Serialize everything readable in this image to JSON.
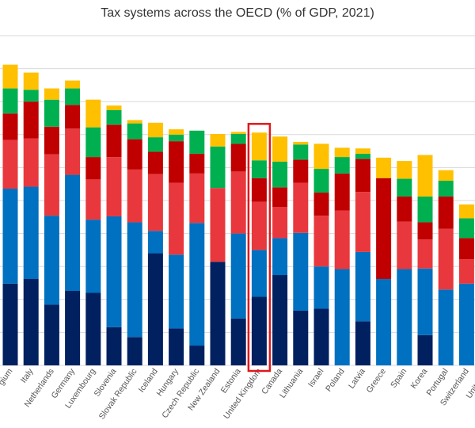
{
  "chart_data": {
    "type": "bar",
    "stacked": true,
    "title": "Tax systems across the OECD (% of GDP, 2021)",
    "xlabel": "",
    "ylabel": "",
    "ylim": [
      0,
      50
    ],
    "grid": true,
    "legend": "none",
    "categories": [
      "Belgium",
      "Italy",
      "Netherlands",
      "Germany",
      "Luxembourg",
      "Slovenia",
      "Slovak Republic",
      "Iceland",
      "Hungary",
      "Czech Republic",
      "New Zealand",
      "Estonia",
      "United Kingdom",
      "Canada",
      "Lithuania",
      "Israel",
      "Poland",
      "Latvia",
      "Greece",
      "Spain",
      "Korea",
      "Portugal",
      "Switzerland",
      "United States"
    ],
    "visible_category_labels": [
      "gium",
      "Italy",
      "Netherlands",
      "Germany",
      "Luxembourg",
      "Slovenia",
      "Slovak Republic",
      "Iceland",
      "Hungary",
      "Czech Republic",
      "New Zealand",
      "Estonia",
      "United Kingdom",
      "Canada",
      "Lithuania",
      "Israel",
      "Poland",
      "Latvia",
      "Greece",
      "Spain",
      "Korea",
      "Portugal",
      "Switzerland",
      "United St"
    ],
    "series": [
      {
        "color": "#002060",
        "values": [
          12.4,
          13.1,
          9.2,
          11.3,
          11.0,
          5.8,
          4.3,
          17.0,
          5.6,
          3.0,
          15.7,
          7.1,
          10.4,
          13.7,
          8.3,
          8.6,
          0,
          6.7,
          0,
          0,
          4.6,
          0,
          0,
          11.1
        ]
      },
      {
        "color": "#0070C0",
        "values": [
          14.4,
          14.0,
          13.5,
          17.6,
          11.1,
          16.8,
          17.4,
          3.4,
          11.2,
          18.6,
          0,
          12.9,
          7.1,
          5.6,
          11.8,
          6.4,
          14.6,
          10.5,
          13.1,
          14.6,
          10.1,
          11.5,
          12.4,
          5.8
        ]
      },
      {
        "color": "#E8383D",
        "values": [
          7.4,
          7.3,
          9.3,
          7.0,
          6.1,
          9.0,
          8.0,
          8.6,
          10.9,
          7.5,
          11.2,
          9.4,
          7.3,
          4.7,
          7.6,
          7.7,
          8.9,
          9.1,
          0,
          7.2,
          4.4,
          9.2,
          3.7,
          6.0
        ]
      },
      {
        "color": "#C00000",
        "values": [
          4.0,
          5.6,
          4.2,
          3.6,
          3.4,
          4.9,
          4.6,
          3.4,
          6.3,
          3.0,
          0,
          4.2,
          3.6,
          3.0,
          3.5,
          3.5,
          5.6,
          5.0,
          15.3,
          3.8,
          2.6,
          4.9,
          3.2,
          2.2
        ]
      },
      {
        "color": "#00B050",
        "values": [
          3.8,
          1.8,
          4.1,
          2.5,
          4.5,
          2.2,
          2.4,
          2.2,
          1.0,
          3.5,
          6.3,
          1.5,
          2.7,
          3.9,
          2.3,
          3.6,
          2.5,
          0.8,
          0,
          2.7,
          3.9,
          2.4,
          3.0,
          2.2
        ]
      },
      {
        "color": "#FFC000",
        "values": [
          3.6,
          2.6,
          1.7,
          1.2,
          4.2,
          0.7,
          0.5,
          2.2,
          0.8,
          0,
          1.9,
          0.3,
          4.2,
          3.8,
          0.4,
          3.8,
          1.4,
          0.8,
          3.1,
          2.7,
          6.3,
          1.6,
          2.1,
          0
        ]
      }
    ]
  }
}
